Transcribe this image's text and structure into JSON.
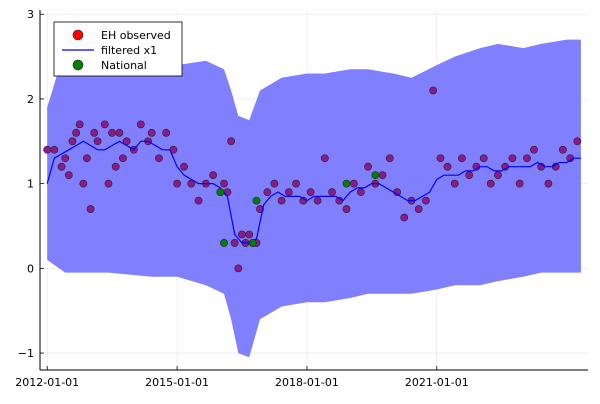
{
  "chart_data": {
    "type": "scatter",
    "title": "",
    "xlabel": "",
    "ylabel": "",
    "xlim": [
      "2011-11-01",
      "2024-06-30"
    ],
    "ylim": [
      -1.2,
      3.05
    ],
    "grid": true,
    "legend": {
      "placement": "top-left"
    },
    "x_ticks": [
      "2012-01-01",
      "2015-01-01",
      "2018-01-01",
      "2021-01-01"
    ],
    "y_ticks": [
      -1,
      0,
      1,
      2,
      3
    ],
    "series": [
      {
        "name": "EH observed",
        "kind": "points",
        "color": "#ff0000",
        "display_color": "#8b1a8b",
        "points": [
          [
            "2012-01-01",
            1.4
          ],
          [
            "2012-03-01",
            1.4
          ],
          [
            "2012-05-01",
            1.2
          ],
          [
            "2012-06-01",
            1.3
          ],
          [
            "2012-07-01",
            1.1
          ],
          [
            "2012-08-01",
            1.5
          ],
          [
            "2012-09-01",
            1.6
          ],
          [
            "2012-10-01",
            1.7
          ],
          [
            "2012-11-01",
            1.0
          ],
          [
            "2012-12-01",
            1.3
          ],
          [
            "2013-01-01",
            0.7
          ],
          [
            "2013-02-01",
            1.6
          ],
          [
            "2013-03-01",
            1.5
          ],
          [
            "2013-05-01",
            1.7
          ],
          [
            "2013-06-01",
            1.0
          ],
          [
            "2013-07-01",
            1.6
          ],
          [
            "2013-08-01",
            1.2
          ],
          [
            "2013-09-01",
            1.6
          ],
          [
            "2013-10-01",
            1.3
          ],
          [
            "2013-11-01",
            1.5
          ],
          [
            "2014-01-01",
            1.4
          ],
          [
            "2014-03-01",
            1.7
          ],
          [
            "2014-05-01",
            1.5
          ],
          [
            "2014-06-01",
            1.6
          ],
          [
            "2014-08-01",
            1.3
          ],
          [
            "2014-10-01",
            1.6
          ],
          [
            "2014-12-01",
            1.4
          ],
          [
            "2015-01-01",
            1.0
          ],
          [
            "2015-03-01",
            1.2
          ],
          [
            "2015-05-01",
            1.0
          ],
          [
            "2015-07-01",
            0.8
          ],
          [
            "2015-09-01",
            1.0
          ],
          [
            "2015-11-01",
            1.1
          ],
          [
            "2016-01-01",
            0.9
          ],
          [
            "2016-02-01",
            1.0
          ],
          [
            "2016-03-01",
            0.9
          ],
          [
            "2016-04-01",
            1.5
          ],
          [
            "2016-05-01",
            0.3
          ],
          [
            "2016-06-01",
            0.0
          ],
          [
            "2016-07-01",
            0.4
          ],
          [
            "2016-08-01",
            0.3
          ],
          [
            "2016-09-01",
            0.4
          ],
          [
            "2016-10-01",
            0.3
          ],
          [
            "2016-11-01",
            0.3
          ],
          [
            "2016-12-01",
            0.7
          ],
          [
            "2017-02-01",
            0.9
          ],
          [
            "2017-04-01",
            1.0
          ],
          [
            "2017-06-01",
            0.8
          ],
          [
            "2017-08-01",
            0.9
          ],
          [
            "2017-10-01",
            1.0
          ],
          [
            "2017-12-01",
            0.8
          ],
          [
            "2018-02-01",
            0.9
          ],
          [
            "2018-04-01",
            0.8
          ],
          [
            "2018-06-01",
            1.3
          ],
          [
            "2018-08-01",
            0.9
          ],
          [
            "2018-10-01",
            0.8
          ],
          [
            "2018-12-01",
            0.7
          ],
          [
            "2019-02-01",
            1.0
          ],
          [
            "2019-04-01",
            0.9
          ],
          [
            "2019-06-01",
            1.2
          ],
          [
            "2019-08-01",
            1.0
          ],
          [
            "2019-10-01",
            1.1
          ],
          [
            "2019-12-01",
            1.3
          ],
          [
            "2020-02-01",
            0.9
          ],
          [
            "2020-04-01",
            0.6
          ],
          [
            "2020-06-01",
            0.8
          ],
          [
            "2020-08-01",
            0.7
          ],
          [
            "2020-10-01",
            0.8
          ],
          [
            "2020-12-01",
            2.1
          ],
          [
            "2021-02-01",
            1.3
          ],
          [
            "2021-04-01",
            1.2
          ],
          [
            "2021-06-01",
            1.0
          ],
          [
            "2021-08-01",
            1.3
          ],
          [
            "2021-10-01",
            1.1
          ],
          [
            "2021-12-01",
            1.2
          ],
          [
            "2022-02-01",
            1.3
          ],
          [
            "2022-04-01",
            1.0
          ],
          [
            "2022-06-01",
            1.1
          ],
          [
            "2022-08-01",
            1.2
          ],
          [
            "2022-10-01",
            1.3
          ],
          [
            "2022-12-01",
            1.0
          ],
          [
            "2023-02-01",
            1.3
          ],
          [
            "2023-04-01",
            1.4
          ],
          [
            "2023-06-01",
            1.2
          ],
          [
            "2023-08-01",
            1.0
          ],
          [
            "2023-10-01",
            1.2
          ],
          [
            "2023-12-01",
            1.4
          ],
          [
            "2024-02-01",
            1.3
          ],
          [
            "2024-04-01",
            1.5
          ]
        ]
      },
      {
        "name": "filtered x1",
        "kind": "line_with_band",
        "color": "#0000ff",
        "band_color": "#8080ff",
        "points": [
          [
            "2012-01-01",
            1.0
          ],
          [
            "2012-03-01",
            1.3
          ],
          [
            "2012-05-01",
            1.35
          ],
          [
            "2012-07-01",
            1.4
          ],
          [
            "2012-09-01",
            1.45
          ],
          [
            "2012-11-01",
            1.5
          ],
          [
            "2013-01-01",
            1.45
          ],
          [
            "2013-03-01",
            1.4
          ],
          [
            "2013-05-01",
            1.4
          ],
          [
            "2013-07-01",
            1.45
          ],
          [
            "2013-09-01",
            1.5
          ],
          [
            "2013-11-01",
            1.45
          ],
          [
            "2014-01-01",
            1.4
          ],
          [
            "2014-03-01",
            1.5
          ],
          [
            "2014-05-01",
            1.5
          ],
          [
            "2014-07-01",
            1.45
          ],
          [
            "2014-09-01",
            1.4
          ],
          [
            "2014-11-01",
            1.4
          ],
          [
            "2015-01-01",
            1.2
          ],
          [
            "2015-03-01",
            1.1
          ],
          [
            "2015-05-01",
            1.05
          ],
          [
            "2015-07-01",
            1.0
          ],
          [
            "2015-09-01",
            1.0
          ],
          [
            "2015-11-01",
            1.0
          ],
          [
            "2016-01-01",
            0.95
          ],
          [
            "2016-03-01",
            0.85
          ],
          [
            "2016-05-01",
            0.4
          ],
          [
            "2016-07-01",
            0.3
          ],
          [
            "2016-09-01",
            0.3
          ],
          [
            "2016-11-01",
            0.35
          ],
          [
            "2017-01-01",
            0.75
          ],
          [
            "2017-03-01",
            0.85
          ],
          [
            "2017-05-01",
            0.9
          ],
          [
            "2017-07-01",
            0.85
          ],
          [
            "2017-09-01",
            0.85
          ],
          [
            "2017-11-01",
            0.85
          ],
          [
            "2018-01-01",
            0.8
          ],
          [
            "2018-03-01",
            0.85
          ],
          [
            "2018-05-01",
            0.85
          ],
          [
            "2018-07-01",
            0.85
          ],
          [
            "2018-09-01",
            0.85
          ],
          [
            "2018-11-01",
            0.8
          ],
          [
            "2019-01-01",
            0.9
          ],
          [
            "2019-03-01",
            0.95
          ],
          [
            "2019-05-01",
            0.95
          ],
          [
            "2019-07-01",
            1.0
          ],
          [
            "2019-09-01",
            1.0
          ],
          [
            "2019-11-01",
            0.95
          ],
          [
            "2020-01-01",
            0.9
          ],
          [
            "2020-03-01",
            0.85
          ],
          [
            "2020-05-01",
            0.8
          ],
          [
            "2020-07-01",
            0.8
          ],
          [
            "2020-09-01",
            0.85
          ],
          [
            "2020-11-01",
            0.9
          ],
          [
            "2021-01-01",
            1.05
          ],
          [
            "2021-03-01",
            1.1
          ],
          [
            "2021-05-01",
            1.1
          ],
          [
            "2021-07-01",
            1.1
          ],
          [
            "2021-09-01",
            1.15
          ],
          [
            "2021-11-01",
            1.15
          ],
          [
            "2022-01-01",
            1.2
          ],
          [
            "2022-03-01",
            1.2
          ],
          [
            "2022-05-01",
            1.15
          ],
          [
            "2022-07-01",
            1.15
          ],
          [
            "2022-09-01",
            1.2
          ],
          [
            "2022-11-01",
            1.2
          ],
          [
            "2023-01-01",
            1.2
          ],
          [
            "2023-03-01",
            1.2
          ],
          [
            "2023-05-01",
            1.25
          ],
          [
            "2023-07-01",
            1.2
          ],
          [
            "2023-09-01",
            1.2
          ],
          [
            "2023-11-01",
            1.25
          ],
          [
            "2024-01-01",
            1.25
          ],
          [
            "2024-03-01",
            1.3
          ],
          [
            "2024-05-01",
            1.3
          ]
        ],
        "band_upper": [
          [
            "2012-01-01",
            1.9
          ],
          [
            "2012-06-01",
            2.6
          ],
          [
            "2013-06-01",
            2.55
          ],
          [
            "2014-06-01",
            2.5
          ],
          [
            "2015-01-01",
            2.4
          ],
          [
            "2015-09-01",
            2.45
          ],
          [
            "2016-02-01",
            2.35
          ],
          [
            "2016-04-01",
            2.1
          ],
          [
            "2016-06-01",
            1.8
          ],
          [
            "2016-09-01",
            1.75
          ],
          [
            "2016-12-01",
            2.1
          ],
          [
            "2017-06-01",
            2.25
          ],
          [
            "2018-01-01",
            2.3
          ],
          [
            "2018-06-01",
            2.3
          ],
          [
            "2019-01-01",
            2.35
          ],
          [
            "2019-06-01",
            2.35
          ],
          [
            "2020-01-01",
            2.3
          ],
          [
            "2020-06-01",
            2.25
          ],
          [
            "2021-01-01",
            2.4
          ],
          [
            "2021-06-01",
            2.5
          ],
          [
            "2022-01-01",
            2.6
          ],
          [
            "2022-06-01",
            2.65
          ],
          [
            "2023-01-01",
            2.6
          ],
          [
            "2023-06-01",
            2.65
          ],
          [
            "2024-01-01",
            2.7
          ],
          [
            "2024-05-01",
            2.7
          ]
        ],
        "band_lower": [
          [
            "2012-01-01",
            0.1
          ],
          [
            "2012-06-01",
            -0.05
          ],
          [
            "2013-06-01",
            -0.05
          ],
          [
            "2014-06-01",
            -0.1
          ],
          [
            "2015-01-01",
            -0.1
          ],
          [
            "2015-09-01",
            -0.2
          ],
          [
            "2016-02-01",
            -0.3
          ],
          [
            "2016-04-01",
            -0.6
          ],
          [
            "2016-06-01",
            -1.0
          ],
          [
            "2016-09-01",
            -1.05
          ],
          [
            "2016-12-01",
            -0.6
          ],
          [
            "2017-06-01",
            -0.45
          ],
          [
            "2018-01-01",
            -0.4
          ],
          [
            "2018-06-01",
            -0.4
          ],
          [
            "2019-01-01",
            -0.35
          ],
          [
            "2019-06-01",
            -0.3
          ],
          [
            "2020-01-01",
            -0.3
          ],
          [
            "2020-06-01",
            -0.3
          ],
          [
            "2021-01-01",
            -0.25
          ],
          [
            "2021-06-01",
            -0.2
          ],
          [
            "2022-01-01",
            -0.2
          ],
          [
            "2022-06-01",
            -0.15
          ],
          [
            "2023-01-01",
            -0.1
          ],
          [
            "2023-06-01",
            -0.05
          ],
          [
            "2024-01-01",
            -0.05
          ],
          [
            "2024-05-01",
            -0.05
          ]
        ]
      },
      {
        "name": "National",
        "kind": "points",
        "color": "#008000",
        "points": [
          [
            "2016-01-01",
            0.9
          ],
          [
            "2016-02-01",
            0.3
          ],
          [
            "2016-10-01",
            0.3
          ],
          [
            "2016-11-01",
            0.8
          ],
          [
            "2018-12-01",
            1.0
          ],
          [
            "2019-08-01",
            1.1
          ]
        ]
      }
    ]
  }
}
